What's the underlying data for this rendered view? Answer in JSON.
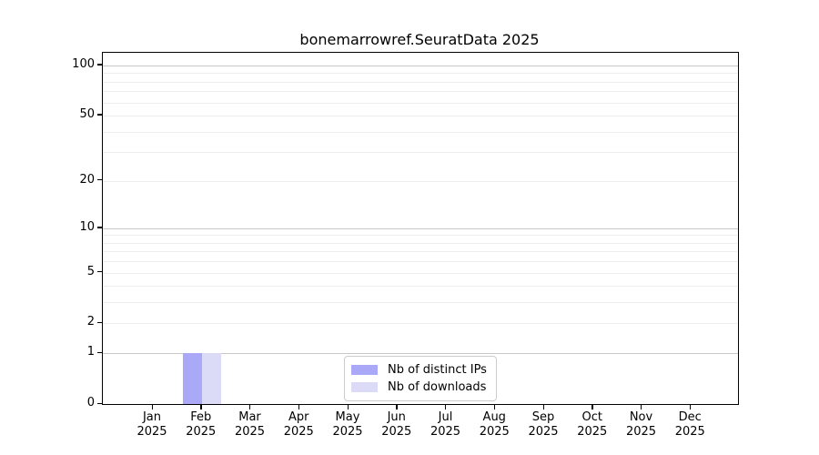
{
  "chart_data": {
    "type": "bar",
    "title": "bonemarrowref.SeuratData 2025",
    "x_categories": [
      {
        "month": "Jan",
        "year": "2025"
      },
      {
        "month": "Feb",
        "year": "2025"
      },
      {
        "month": "Mar",
        "year": "2025"
      },
      {
        "month": "Apr",
        "year": "2025"
      },
      {
        "month": "May",
        "year": "2025"
      },
      {
        "month": "Jun",
        "year": "2025"
      },
      {
        "month": "Jul",
        "year": "2025"
      },
      {
        "month": "Aug",
        "year": "2025"
      },
      {
        "month": "Sep",
        "year": "2025"
      },
      {
        "month": "Oct",
        "year": "2025"
      },
      {
        "month": "Nov",
        "year": "2025"
      },
      {
        "month": "Dec",
        "year": "2025"
      }
    ],
    "series": [
      {
        "name": "Nb of distinct IPs",
        "color": "#a9a9f7",
        "values": [
          0,
          1,
          0,
          0,
          0,
          0,
          0,
          0,
          0,
          0,
          0,
          0
        ]
      },
      {
        "name": "Nb of downloads",
        "color": "#dbdbf7",
        "values": [
          0,
          1,
          0,
          0,
          0,
          0,
          0,
          0,
          0,
          0,
          0,
          0
        ]
      }
    ],
    "y_scale": "log10(1+y)",
    "ylim": [
      0,
      119
    ],
    "y_ticks": [
      0,
      1,
      2,
      5,
      10,
      20,
      50,
      100
    ],
    "major_gridlines": [
      1,
      10,
      100
    ],
    "minor_gridlines": [
      2,
      3,
      4,
      5,
      6,
      7,
      8,
      9,
      20,
      30,
      40,
      50,
      60,
      70,
      80,
      90
    ],
    "grid": true,
    "legend_position": "lower center",
    "colors": {
      "spine": "#000000",
      "grid_major": "#c7c7c7",
      "grid_minor": "#ededed",
      "background": "#ffffff",
      "text": "#000000"
    }
  }
}
